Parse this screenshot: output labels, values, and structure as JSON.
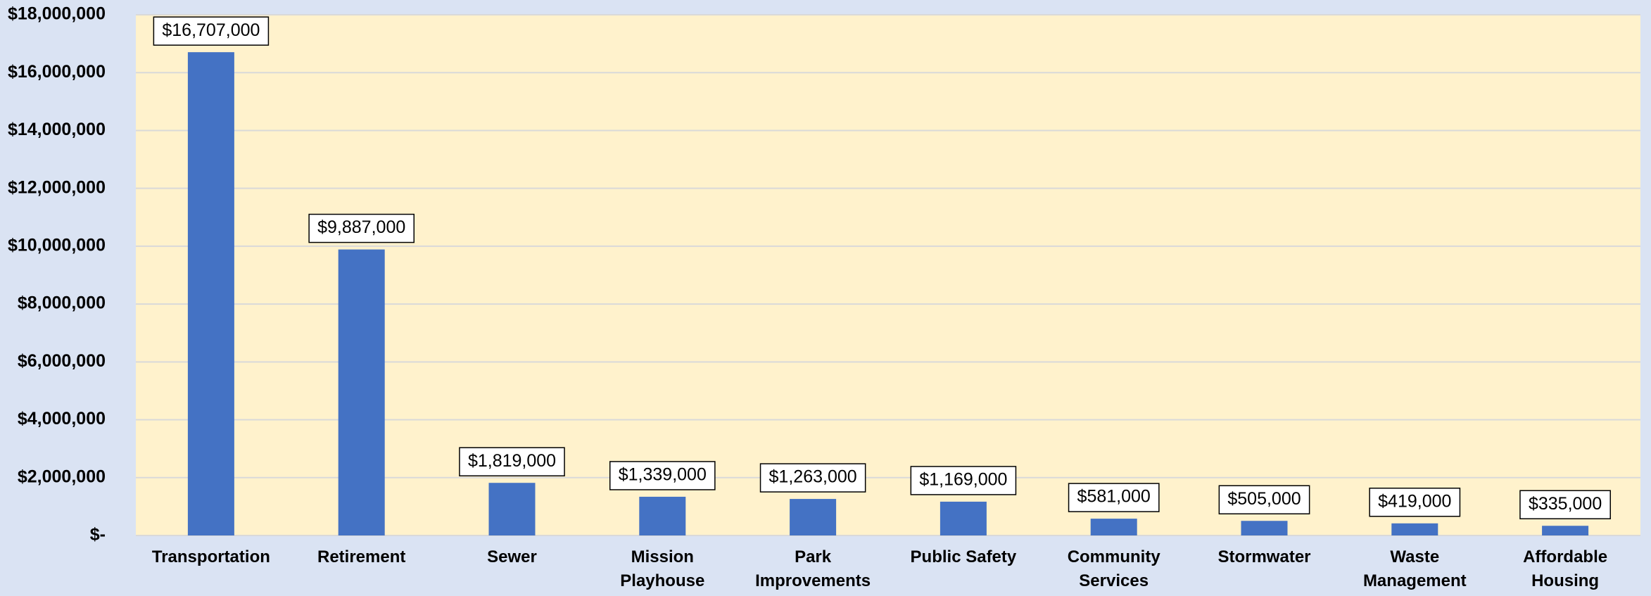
{
  "chart_data": {
    "type": "bar",
    "categories": [
      "Transportation",
      "Retirement",
      "Sewer",
      "Mission Playhouse",
      "Park Improvements",
      "Public Safety",
      "Community Services",
      "Stormwater",
      "Waste Management",
      "Affordable Housing"
    ],
    "values": [
      16707000,
      9887000,
      1819000,
      1339000,
      1263000,
      1169000,
      581000,
      505000,
      419000,
      335000
    ],
    "value_labels": [
      "$16,707,000",
      "$9,887,000",
      "$1,819,000",
      "$1,339,000",
      "$1,263,000",
      "$1,169,000",
      "$581,000",
      "$505,000",
      "$419,000",
      "$335,000"
    ],
    "color": "#4472c4",
    "ylim": [
      0,
      18000000
    ],
    "yticks": [
      {
        "value": 0,
        "label": "$-"
      },
      {
        "value": 2000000,
        "label": "$2,000,000"
      },
      {
        "value": 4000000,
        "label": "$4,000,000"
      },
      {
        "value": 6000000,
        "label": "$6,000,000"
      },
      {
        "value": 8000000,
        "label": "$8,000,000"
      },
      {
        "value": 10000000,
        "label": "$10,000,000"
      },
      {
        "value": 12000000,
        "label": "$12,000,000"
      },
      {
        "value": 14000000,
        "label": "$14,000,000"
      },
      {
        "value": 16000000,
        "label": "$16,000,000"
      },
      {
        "value": 18000000,
        "label": "$18,000,000"
      }
    ],
    "grid": true
  }
}
